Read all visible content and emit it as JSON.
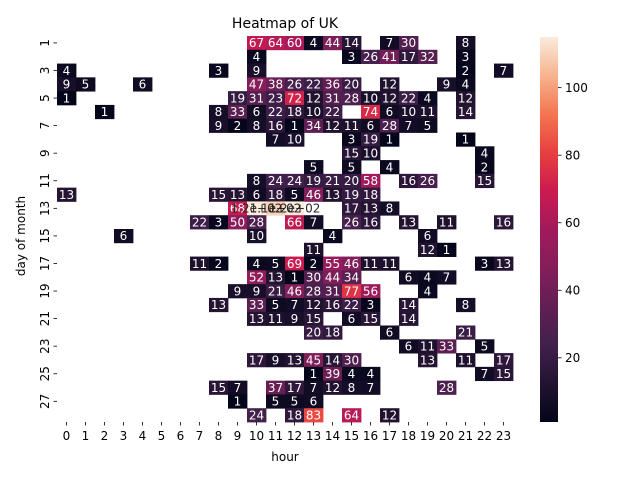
{
  "chart_data": {
    "type": "heatmap",
    "title": "Heatmap of UK",
    "xlabel": "hour",
    "ylabel": "day of month",
    "x": [
      0,
      1,
      2,
      3,
      4,
      5,
      6,
      7,
      8,
      9,
      10,
      11,
      12,
      13,
      14,
      15,
      16,
      17,
      18,
      19,
      20,
      21,
      22,
      23
    ],
    "y": [
      1,
      2,
      3,
      4,
      5,
      6,
      7,
      8,
      9,
      10,
      11,
      12,
      13,
      14,
      15,
      16,
      17,
      18,
      19,
      20,
      21,
      22,
      23,
      24,
      25,
      26,
      27,
      28
    ],
    "x_tick_labels": [
      "0",
      "1",
      "2",
      "3",
      "4",
      "5",
      "6",
      "7",
      "8",
      "9",
      "10",
      "11",
      "12",
      "13",
      "14",
      "15",
      "16",
      "17",
      "18",
      "19",
      "20",
      "21",
      "22",
      "23"
    ],
    "y_tick_labels": [
      "1",
      "3",
      "5",
      "7",
      "9",
      "11",
      "13",
      "15",
      "17",
      "19",
      "21",
      "23",
      "25",
      "27"
    ],
    "colorbar_ticks": [
      20,
      40,
      60,
      80,
      100
    ],
    "colorscale": "rocket",
    "vmin": 1,
    "vmax": 115,
    "values": [
      [
        null,
        null,
        null,
        null,
        null,
        null,
        null,
        null,
        null,
        null,
        67,
        64,
        60,
        4,
        44,
        14,
        null,
        7,
        30,
        null,
        null,
        8,
        null,
        null
      ],
      [
        null,
        null,
        null,
        null,
        null,
        null,
        null,
        null,
        null,
        null,
        4,
        null,
        null,
        null,
        null,
        3,
        26,
        41,
        17,
        32,
        null,
        3,
        null,
        null
      ],
      [
        4,
        null,
        null,
        null,
        null,
        null,
        null,
        null,
        3,
        null,
        9,
        null,
        null,
        null,
        null,
        null,
        null,
        null,
        null,
        null,
        null,
        2,
        null,
        7
      ],
      [
        9,
        5,
        null,
        null,
        6,
        null,
        null,
        null,
        null,
        null,
        47,
        38,
        26,
        22,
        36,
        20,
        null,
        12,
        null,
        null,
        9,
        4,
        null,
        null
      ],
      [
        1,
        null,
        null,
        null,
        null,
        null,
        null,
        null,
        null,
        19,
        31,
        23,
        72,
        12,
        31,
        28,
        10,
        12,
        22,
        4,
        null,
        12,
        null,
        null
      ],
      [
        null,
        null,
        1,
        null,
        null,
        null,
        null,
        null,
        8,
        33,
        6,
        22,
        18,
        10,
        22,
        null,
        74,
        6,
        10,
        11,
        null,
        14,
        null,
        null
      ],
      [
        null,
        null,
        null,
        null,
        null,
        null,
        null,
        null,
        9,
        2,
        8,
        16,
        1,
        34,
        12,
        11,
        6,
        28,
        7,
        5,
        null,
        null,
        null,
        null
      ],
      [
        null,
        null,
        null,
        null,
        null,
        null,
        null,
        null,
        null,
        null,
        null,
        7,
        10,
        null,
        null,
        3,
        19,
        1,
        null,
        null,
        null,
        1,
        null,
        null
      ],
      [
        null,
        null,
        null,
        null,
        null,
        null,
        null,
        null,
        null,
        null,
        null,
        null,
        null,
        null,
        null,
        15,
        10,
        null,
        null,
        null,
        null,
        null,
        4,
        null
      ],
      [
        null,
        null,
        null,
        null,
        null,
        null,
        null,
        null,
        null,
        null,
        null,
        null,
        null,
        5,
        null,
        5,
        null,
        4,
        null,
        null,
        null,
        null,
        2,
        null
      ],
      [
        null,
        null,
        null,
        null,
        null,
        null,
        null,
        null,
        null,
        null,
        8,
        24,
        24,
        19,
        21,
        20,
        58,
        null,
        16,
        26,
        null,
        null,
        15,
        null
      ],
      [
        13,
        null,
        null,
        null,
        null,
        null,
        null,
        null,
        15,
        13,
        6,
        18,
        5,
        46,
        13,
        19,
        18,
        null,
        null,
        null,
        null,
        null,
        null,
        null
      ],
      [
        null,
        null,
        null,
        null,
        null,
        null,
        null,
        null,
        null,
        68,
        "1.2e+02",
        "1.1e+02",
        "1.2e+02",
        null,
        null,
        17,
        13,
        8,
        null,
        null,
        null,
        null,
        null,
        null
      ],
      [
        null,
        null,
        null,
        null,
        null,
        null,
        null,
        22,
        3,
        50,
        28,
        null,
        66,
        7,
        null,
        26,
        16,
        null,
        13,
        null,
        11,
        null,
        null,
        16
      ],
      [
        null,
        null,
        null,
        6,
        null,
        null,
        null,
        null,
        null,
        null,
        10,
        null,
        null,
        null,
        4,
        null,
        null,
        null,
        null,
        6,
        null,
        null,
        null,
        null
      ],
      [
        null,
        null,
        null,
        null,
        null,
        null,
        null,
        null,
        null,
        null,
        null,
        null,
        null,
        11,
        null,
        null,
        null,
        null,
        null,
        12,
        1,
        null,
        null,
        null
      ],
      [
        null,
        null,
        null,
        null,
        null,
        null,
        null,
        11,
        2,
        null,
        4,
        5,
        69,
        2,
        55,
        46,
        11,
        11,
        null,
        null,
        null,
        null,
        3,
        13
      ],
      [
        null,
        null,
        null,
        null,
        null,
        null,
        null,
        null,
        null,
        null,
        52,
        13,
        1,
        30,
        44,
        34,
        null,
        null,
        6,
        4,
        7,
        null,
        null,
        null
      ],
      [
        null,
        null,
        null,
        null,
        null,
        null,
        null,
        null,
        null,
        9,
        9,
        21,
        46,
        28,
        31,
        77,
        56,
        null,
        null,
        4,
        null,
        null,
        null,
        null
      ],
      [
        null,
        null,
        null,
        null,
        null,
        null,
        null,
        null,
        13,
        null,
        33,
        5,
        7,
        12,
        16,
        22,
        3,
        null,
        14,
        null,
        null,
        8,
        null,
        null
      ],
      [
        null,
        null,
        null,
        null,
        null,
        null,
        null,
        null,
        null,
        null,
        13,
        11,
        9,
        15,
        null,
        6,
        15,
        null,
        14,
        null,
        null,
        null,
        null,
        null
      ],
      [
        null,
        null,
        null,
        null,
        null,
        null,
        null,
        null,
        null,
        null,
        null,
        null,
        null,
        20,
        18,
        null,
        null,
        6,
        null,
        null,
        null,
        21,
        null,
        null
      ],
      [
        null,
        null,
        null,
        null,
        null,
        null,
        null,
        null,
        null,
        null,
        null,
        null,
        null,
        null,
        null,
        null,
        null,
        null,
        6,
        11,
        33,
        null,
        5,
        null
      ],
      [
        null,
        null,
        null,
        null,
        null,
        null,
        null,
        null,
        null,
        null,
        17,
        9,
        13,
        45,
        14,
        30,
        null,
        null,
        null,
        13,
        null,
        11,
        null,
        17
      ],
      [
        null,
        null,
        null,
        null,
        null,
        null,
        null,
        null,
        null,
        null,
        null,
        null,
        null,
        1,
        39,
        4,
        4,
        null,
        null,
        null,
        null,
        null,
        7,
        15
      ],
      [
        null,
        null,
        null,
        null,
        null,
        null,
        null,
        null,
        15,
        7,
        null,
        37,
        17,
        7,
        12,
        8,
        7,
        null,
        null,
        null,
        28,
        null,
        null,
        null
      ],
      [
        null,
        null,
        null,
        null,
        null,
        null,
        null,
        null,
        null,
        1,
        null,
        5,
        5,
        6,
        null,
        null,
        null,
        null,
        null,
        null,
        null,
        null,
        null,
        null
      ],
      [
        null,
        null,
        null,
        null,
        null,
        null,
        null,
        null,
        null,
        null,
        24,
        null,
        18,
        83,
        null,
        64,
        null,
        12,
        null,
        null,
        null,
        null,
        null,
        null
      ]
    ]
  }
}
